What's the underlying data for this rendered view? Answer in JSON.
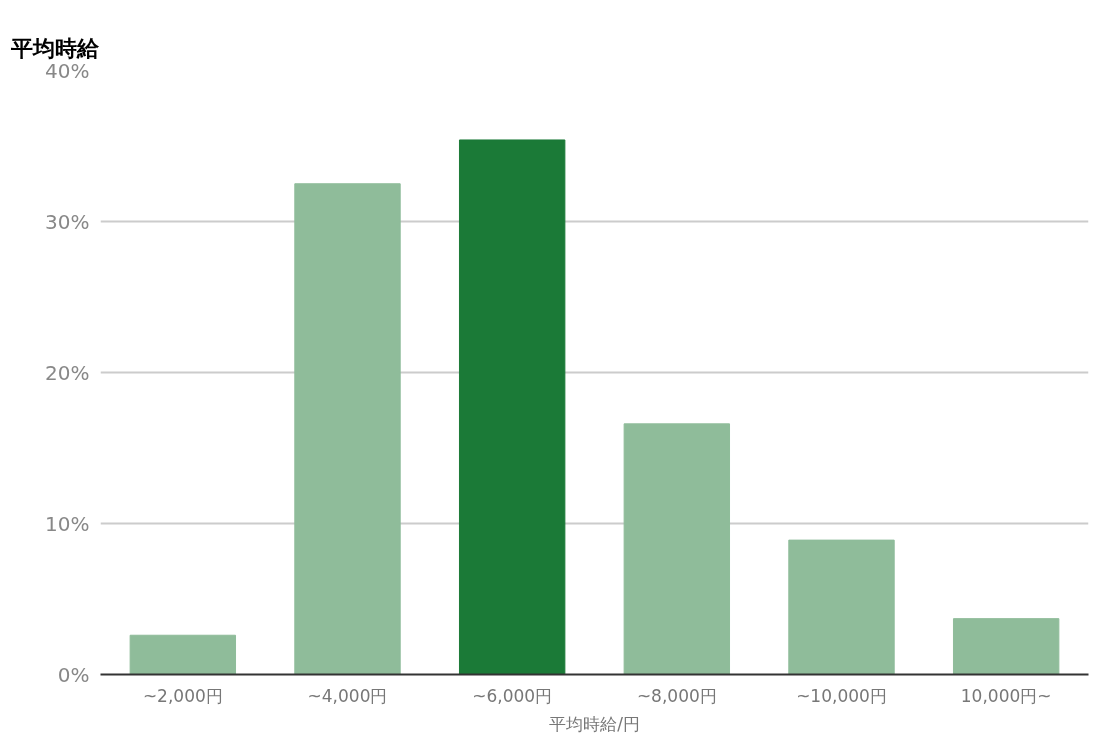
{
  "chart_data": {
    "type": "bar",
    "title": "平均時給",
    "xlabel": "平均時給/円",
    "categories": [
      "~2,000円",
      "~4,000円",
      "~6,000円",
      "~8,000円",
      "~10,000円",
      "10,000円~"
    ],
    "values": [
      2.6,
      32.5,
      35.4,
      16.6,
      8.9,
      3.7
    ],
    "colors": [
      "#8fbc9a",
      "#8fbc9a",
      "#1b7a37",
      "#8fbc9a",
      "#8fbc9a",
      "#8fbc9a"
    ],
    "ylim": [
      0,
      40
    ],
    "yticks": [
      {
        "value": 0,
        "label": "0%"
      },
      {
        "value": 10,
        "label": "10%"
      },
      {
        "value": 20,
        "label": "20%"
      },
      {
        "value": 30,
        "label": "30%"
      },
      {
        "value": 40,
        "label": "40%"
      }
    ],
    "grid": "y"
  }
}
